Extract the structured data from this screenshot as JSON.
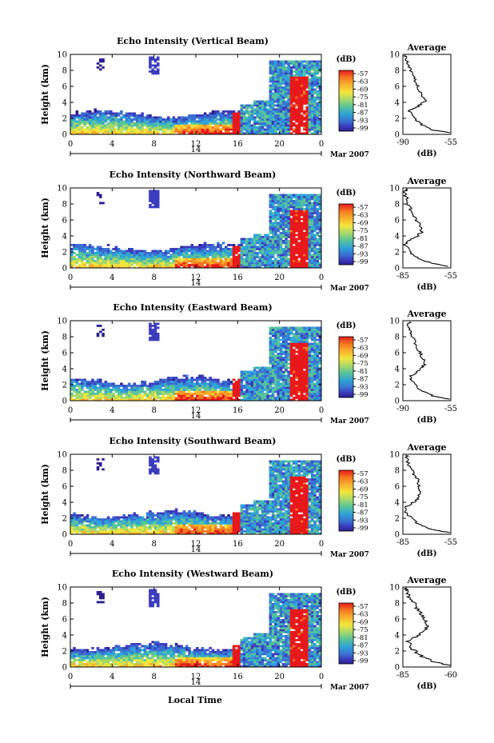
{
  "figure": {
    "x_axis_title": "Local Time",
    "date_day": "14",
    "date_month_year": "Mar 2007",
    "colorbar_unit": "(dB)",
    "avg_unit": "(dB)"
  },
  "colorbar": {
    "tick_labels": [
      "-57",
      "-63",
      "-69",
      "-75",
      "-81",
      "-87",
      "-93",
      "-99"
    ],
    "colors": [
      "#e8191a",
      "#f47a20",
      "#f9b22d",
      "#f2e63c",
      "#a6d96a",
      "#57c39a",
      "#2fa3d8",
      "#3a6fd1",
      "#3a3dbd",
      "#2a1f8f"
    ]
  },
  "chart_data": [
    {
      "type": "heatmap",
      "title": "Echo Intensity (Vertical Beam)",
      "ylabel": "Height (km)",
      "xlabel": "Local Time",
      "x_ticks": [
        "0",
        "4",
        "8",
        "12",
        "16",
        "20",
        "0"
      ],
      "y_ticks": [
        "0",
        "2",
        "4",
        "6",
        "8",
        "10"
      ],
      "xlim": [
        0,
        24
      ],
      "ylim": [
        0,
        10
      ],
      "colorbar_range_db": [
        -99,
        -57
      ],
      "average": {
        "title": "Average",
        "xlim": [
          -90,
          -55
        ],
        "x_ticks": [
          "-90",
          "-55"
        ],
        "xlabel": "(dB)",
        "profile": [
          [
            0.2,
            -56
          ],
          [
            0.6,
            -70
          ],
          [
            1.2,
            -76
          ],
          [
            1.8,
            -80
          ],
          [
            2.5,
            -84
          ],
          [
            3.0,
            -86
          ],
          [
            3.4,
            -80
          ],
          [
            3.8,
            -77
          ],
          [
            4.2,
            -74
          ],
          [
            4.8,
            -76
          ],
          [
            5.5,
            -78
          ],
          [
            6.2,
            -80
          ],
          [
            7.0,
            -82
          ],
          [
            7.8,
            -84
          ],
          [
            8.6,
            -86
          ],
          [
            9.4,
            -88
          ],
          [
            9.9,
            -88
          ]
        ]
      }
    },
    {
      "type": "heatmap",
      "title": "Echo Intensity (Northward Beam)",
      "ylabel": "Height (km)",
      "xlabel": "Local Time",
      "x_ticks": [
        "0",
        "4",
        "8",
        "12",
        "16",
        "20",
        "0"
      ],
      "y_ticks": [
        "0",
        "2",
        "4",
        "6",
        "8",
        "10"
      ],
      "xlim": [
        0,
        24
      ],
      "ylim": [
        0,
        10
      ],
      "colorbar_range_db": [
        -99,
        -57
      ],
      "average": {
        "title": "Average",
        "xlim": [
          -85,
          -55
        ],
        "x_ticks": [
          "-85",
          "-55"
        ],
        "xlabel": "(dB)",
        "profile": [
          [
            0.2,
            -57
          ],
          [
            0.6,
            -68
          ],
          [
            1.2,
            -75
          ],
          [
            1.8,
            -80
          ],
          [
            2.5,
            -82
          ],
          [
            3.0,
            -84
          ],
          [
            3.5,
            -80
          ],
          [
            4.0,
            -76
          ],
          [
            4.6,
            -73
          ],
          [
            5.2,
            -74
          ],
          [
            5.8,
            -76
          ],
          [
            6.5,
            -78
          ],
          [
            7.3,
            -80
          ],
          [
            8.1,
            -82
          ],
          [
            8.9,
            -83
          ],
          [
            9.6,
            -84
          ],
          [
            9.9,
            -83
          ]
        ]
      }
    },
    {
      "type": "heatmap",
      "title": "Echo Intensity (Eastward Beam)",
      "ylabel": "Height (km)",
      "xlabel": "Local Time",
      "x_ticks": [
        "0",
        "4",
        "8",
        "12",
        "16",
        "20",
        "0"
      ],
      "y_ticks": [
        "0",
        "2",
        "4",
        "6",
        "8",
        "10"
      ],
      "xlim": [
        0,
        24
      ],
      "ylim": [
        0,
        10
      ],
      "colorbar_range_db": [
        -99,
        -57
      ],
      "average": {
        "title": "Average",
        "xlim": [
          -90,
          -55
        ],
        "x_ticks": [
          "-90",
          "-55"
        ],
        "xlabel": "(dB)",
        "profile": [
          [
            0.2,
            -56
          ],
          [
            0.6,
            -68
          ],
          [
            1.2,
            -76
          ],
          [
            1.8,
            -80
          ],
          [
            2.5,
            -84
          ],
          [
            3.0,
            -85
          ],
          [
            3.5,
            -80
          ],
          [
            4.0,
            -77
          ],
          [
            4.6,
            -74
          ],
          [
            5.2,
            -75
          ],
          [
            5.8,
            -77
          ],
          [
            6.5,
            -79
          ],
          [
            7.3,
            -81
          ],
          [
            8.1,
            -83
          ],
          [
            8.9,
            -85
          ],
          [
            9.6,
            -86
          ],
          [
            9.9,
            -85
          ]
        ]
      }
    },
    {
      "type": "heatmap",
      "title": "Echo Intensity (Southward Beam)",
      "ylabel": "Height (km)",
      "xlabel": "Local Time",
      "x_ticks": [
        "0",
        "4",
        "8",
        "12",
        "16",
        "20",
        "0"
      ],
      "y_ticks": [
        "0",
        "2",
        "4",
        "6",
        "8",
        "10"
      ],
      "xlim": [
        0,
        24
      ],
      "ylim": [
        0,
        10
      ],
      "colorbar_range_db": [
        -99,
        -57
      ],
      "average": {
        "title": "Average",
        "xlim": [
          -85,
          -55
        ],
        "x_ticks": [
          "-85",
          "-55"
        ],
        "xlabel": "(dB)",
        "profile": [
          [
            0.2,
            -56
          ],
          [
            0.6,
            -66
          ],
          [
            1.2,
            -74
          ],
          [
            1.8,
            -79
          ],
          [
            2.5,
            -82
          ],
          [
            3.2,
            -84
          ],
          [
            3.8,
            -80
          ],
          [
            4.4,
            -76
          ],
          [
            5.0,
            -74
          ],
          [
            5.6,
            -74
          ],
          [
            6.2,
            -75
          ],
          [
            6.8,
            -76
          ],
          [
            7.5,
            -78
          ],
          [
            8.2,
            -80
          ],
          [
            8.9,
            -82
          ],
          [
            9.6,
            -83
          ],
          [
            9.9,
            -83
          ]
        ]
      }
    },
    {
      "type": "heatmap",
      "title": "Echo Intensity (Westward Beam)",
      "ylabel": "Height (km)",
      "xlabel": "Local Time",
      "x_ticks": [
        "0",
        "4",
        "8",
        "12",
        "16",
        "20",
        "0"
      ],
      "y_ticks": [
        "0",
        "2",
        "4",
        "6",
        "8",
        "10"
      ],
      "xlim": [
        0,
        24
      ],
      "ylim": [
        0,
        10
      ],
      "colorbar_range_db": [
        -99,
        -57
      ],
      "average": {
        "title": "Average",
        "xlim": [
          -85,
          -60
        ],
        "x_ticks": [
          "-85",
          "-60"
        ],
        "xlabel": "(dB)",
        "profile": [
          [
            0.2,
            -60
          ],
          [
            0.6,
            -68
          ],
          [
            1.2,
            -74
          ],
          [
            1.8,
            -78
          ],
          [
            2.5,
            -81
          ],
          [
            3.2,
            -82
          ],
          [
            3.8,
            -78
          ],
          [
            4.4,
            -74
          ],
          [
            5.0,
            -72
          ],
          [
            5.6,
            -73
          ],
          [
            6.2,
            -74
          ],
          [
            6.8,
            -76
          ],
          [
            7.5,
            -78
          ],
          [
            8.2,
            -80
          ],
          [
            8.9,
            -82
          ],
          [
            9.6,
            -83
          ],
          [
            9.9,
            -83
          ]
        ]
      }
    }
  ]
}
